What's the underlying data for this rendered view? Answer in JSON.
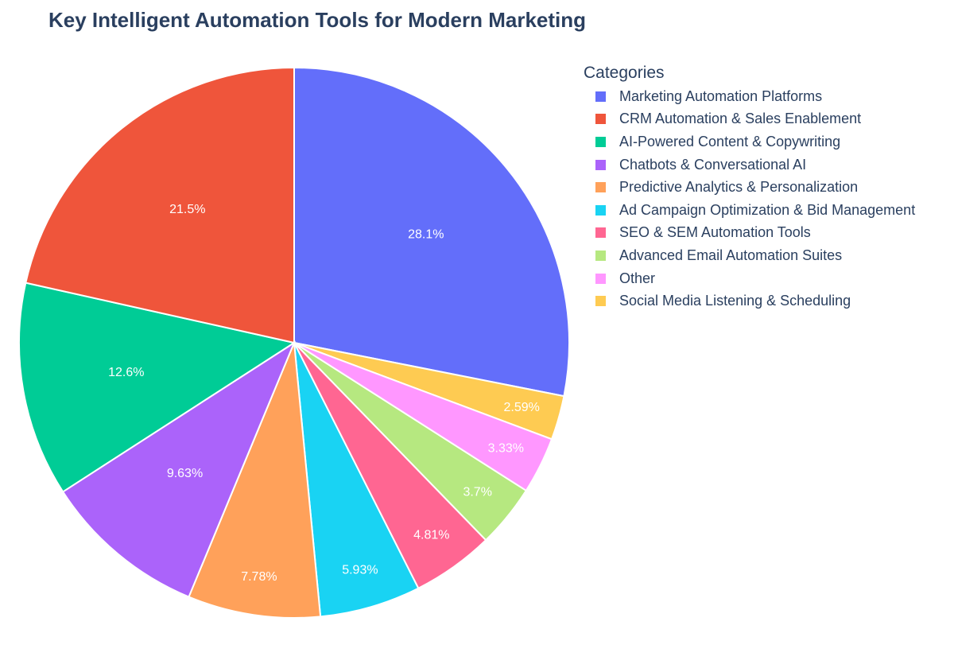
{
  "chart_data": {
    "type": "pie",
    "title": "Key Intelligent Automation Tools for Modern Marketing",
    "legend_title": "Categories",
    "legend_position": "right",
    "direction": "clockwise",
    "start": "top",
    "slices": [
      {
        "label": "Marketing Automation Platforms",
        "percent": 28.1,
        "percent_label": "28.1%",
        "color": "#636efa"
      },
      {
        "label": "Social Media Listening & Scheduling",
        "percent": 2.59,
        "percent_label": "2.59%",
        "color": "#fecb52"
      },
      {
        "label": "Other",
        "percent": 3.33,
        "percent_label": "3.33%",
        "color": "#ff97ff"
      },
      {
        "label": "Advanced Email Automation Suites",
        "percent": 3.7,
        "percent_label": "3.7%",
        "color": "#b6e880"
      },
      {
        "label": "SEO & SEM Automation Tools",
        "percent": 4.81,
        "percent_label": "4.81%",
        "color": "#ff6692"
      },
      {
        "label": "Ad Campaign Optimization & Bid Management",
        "percent": 5.93,
        "percent_label": "5.93%",
        "color": "#19d3f3"
      },
      {
        "label": "Predictive Analytics & Personalization",
        "percent": 7.78,
        "percent_label": "7.78%",
        "color": "#ffa15a"
      },
      {
        "label": "Chatbots & Conversational AI",
        "percent": 9.63,
        "percent_label": "9.63%",
        "color": "#ab63fa"
      },
      {
        "label": "AI-Powered Content & Copywriting",
        "percent": 12.6,
        "percent_label": "12.6%",
        "color": "#00cc96"
      },
      {
        "label": "CRM Automation & Sales Enablement",
        "percent": 21.5,
        "percent_label": "21.5%",
        "color": "#ef553b"
      }
    ],
    "legend_order": [
      "Marketing Automation Platforms",
      "CRM Automation & Sales Enablement",
      "AI-Powered Content & Copywriting",
      "Chatbots & Conversational AI",
      "Predictive Analytics & Personalization",
      "Ad Campaign Optimization & Bid Management",
      "SEO & SEM Automation Tools",
      "Advanced Email Automation Suites",
      "Other",
      "Social Media Listening & Scheduling"
    ]
  }
}
